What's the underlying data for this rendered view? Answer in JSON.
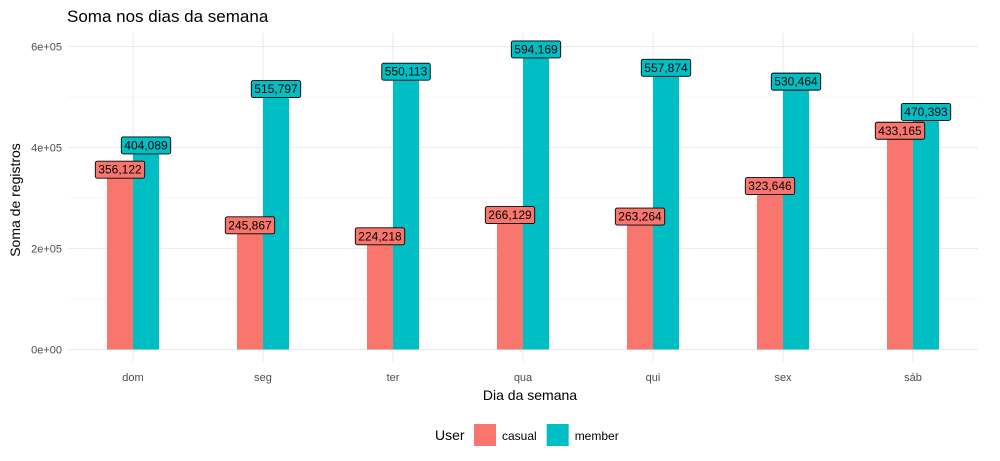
{
  "chart_data": {
    "type": "bar",
    "title": "Soma nos dias da semana",
    "xlabel": "Dia da semana",
    "ylabel": "Soma de registros",
    "categories": [
      "dom",
      "seg",
      "ter",
      "qua",
      "qui",
      "sex",
      "sáb"
    ],
    "series": [
      {
        "name": "casual",
        "color": "#F8766D",
        "values": [
          356122,
          245867,
          224218,
          266129,
          263264,
          323646,
          433165
        ],
        "labels": [
          "356,122",
          "245,867",
          "224,218",
          "266,129",
          "263,264",
          "323,646",
          "433,165"
        ]
      },
      {
        "name": "member",
        "color": "#00BFC4",
        "values": [
          404089,
          515797,
          550113,
          594169,
          557874,
          530464,
          470393
        ],
        "labels": [
          "404,089",
          "515,797",
          "550,113",
          "594,169",
          "557,874",
          "530,464",
          "470,393"
        ]
      }
    ],
    "ylim": [
      0,
      600000
    ],
    "yticks": [
      0,
      200000,
      400000,
      600000
    ],
    "ytick_labels": [
      "0e+00",
      "2e+05",
      "4e+05",
      "6e+05"
    ],
    "grid": true,
    "legend": {
      "title": "User",
      "position": "bottom"
    }
  }
}
